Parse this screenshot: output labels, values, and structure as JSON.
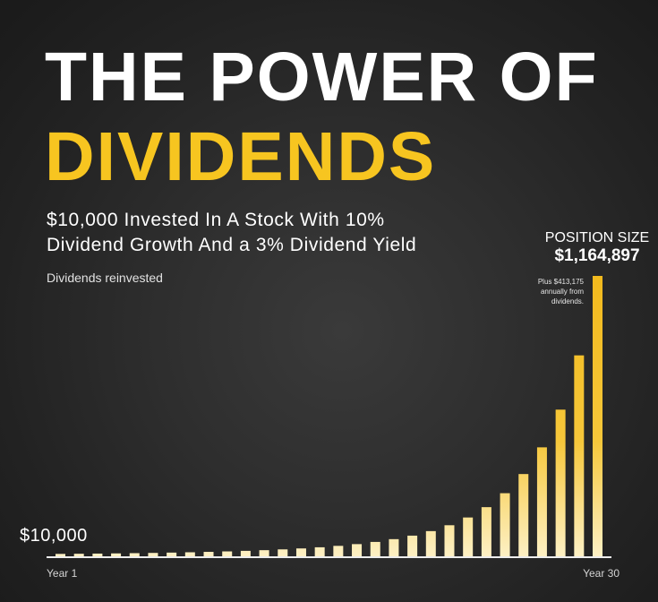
{
  "colors": {
    "title": "#ffffff",
    "accent": "#f7c520",
    "bar_top": "#f2b91c",
    "bar_mid": "#f6c73a",
    "bar_bottom": "#fdf0c4",
    "axis": "#eeeeee",
    "background": "#2b2b2b"
  },
  "chart_data": {
    "type": "bar",
    "title": [
      "THE POWER OF",
      "DIVIDENDS"
    ],
    "subtitle": [
      "$10,000 Invested In A Stock With 10%",
      "Dividend Growth And a 3% Dividend Yield"
    ],
    "note": "Dividends reinvested",
    "xlabel": "",
    "ylabel": "",
    "x": [
      1,
      2,
      3,
      4,
      5,
      6,
      7,
      8,
      9,
      10,
      11,
      12,
      13,
      14,
      15,
      16,
      17,
      18,
      19,
      20,
      21,
      22,
      23,
      24,
      25,
      26,
      27,
      28,
      29,
      30
    ],
    "values": [
      10000,
      10600,
      11300,
      12100,
      13100,
      14100,
      15400,
      16800,
      18500,
      20400,
      22700,
      25500,
      28800,
      32700,
      37500,
      43400,
      50700,
      59800,
      71300,
      85900,
      104700,
      129100,
      161300,
      204200,
      262200,
      341800,
      452700,
      609400,
      834800,
      1164897
    ],
    "ylim": [
      0,
      1164897
    ],
    "grid": false,
    "legend": "none",
    "tick_labels": [
      {
        "x": 1,
        "label": "Year 1"
      },
      {
        "x": 30,
        "label": "Year 30"
      }
    ],
    "annotations": {
      "start_value_label": "$10,000",
      "end_heading": "POSITION SIZE",
      "end_value_label": "$1,164,897",
      "end_note": [
        "Plus $413,175",
        "annually from",
        "dividends."
      ]
    }
  }
}
